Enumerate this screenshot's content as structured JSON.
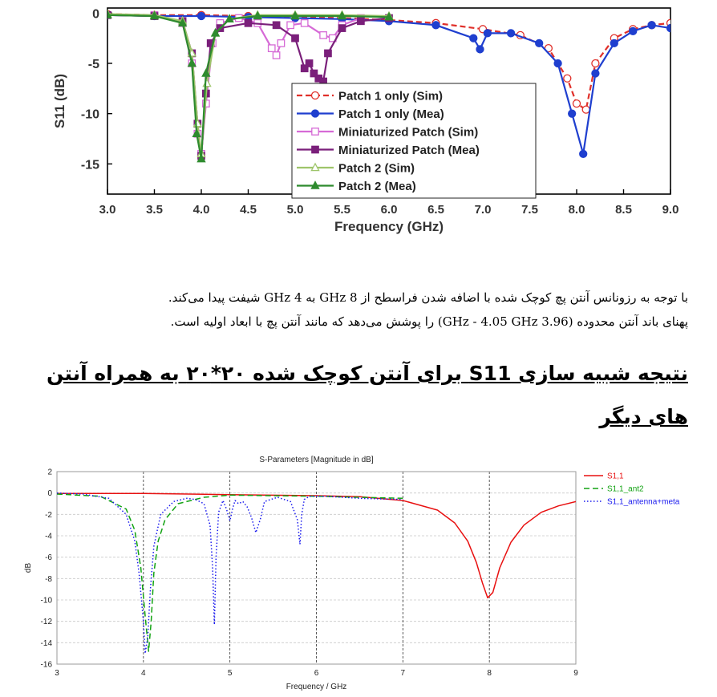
{
  "document": {
    "paragraph_lines": [
      "با توجه به  رزونانس آنتن پچ کوچک شده با اضافه شدن فراسطح از GHz 8 به GHz 4 شیفت پیدا می‌کند.",
      "پهنای باند آنتن محدوده (3.96 GHz - 4.05 GHz) را پوشش می‌دهد که مانند آنتن پچ با ابعاد اولیه است."
    ],
    "heading_lines": [
      "نتیجه شبیه سازی S11 برای آنتن کوچک شده ۲۰*۲۰ به همراه آنتن",
      "های دیگر"
    ]
  },
  "chart_data": [
    {
      "type": "line",
      "title": "",
      "xlabel": "Frequency (GHz)",
      "ylabel": "S11 (dB)",
      "xlim": [
        3.0,
        9.0
      ],
      "ylim": [
        -18,
        0.5
      ],
      "x_ticks": [
        "3.0",
        "3.5",
        "4.0",
        "4.5",
        "5.0",
        "5.5",
        "6.0",
        "6.5",
        "7.0",
        "7.5",
        "8.0",
        "8.5",
        "9.0"
      ],
      "y_ticks": [
        "0",
        "-5",
        "-10",
        "-15"
      ],
      "y_tick_values": [
        0,
        -5,
        -10,
        -15
      ],
      "grid": false,
      "legend_position": "bottom-center",
      "series": [
        {
          "name": "Patch 1 only (Sim)",
          "color": "#e0302a",
          "marker": "open-circle",
          "dash": "dash",
          "x": [
            3.0,
            3.5,
            4.0,
            4.5,
            5.0,
            5.5,
            6.0,
            6.5,
            7.0,
            7.4,
            7.7,
            7.9,
            8.0,
            8.1,
            8.2,
            8.4,
            8.6,
            8.8,
            9.0
          ],
          "y": [
            -0.1,
            -0.2,
            -0.2,
            -0.3,
            -0.4,
            -0.5,
            -0.7,
            -1.0,
            -1.6,
            -2.2,
            -3.5,
            -6.5,
            -9.0,
            -9.6,
            -5.0,
            -2.5,
            -1.6,
            -1.2,
            -1.0
          ]
        },
        {
          "name": "Patch 1 only (Mea)",
          "color": "#1f3fcf",
          "marker": "filled-circle",
          "dash": "solid",
          "x": [
            3.0,
            3.5,
            4.0,
            4.5,
            5.0,
            5.5,
            6.0,
            6.5,
            6.9,
            6.97,
            7.05,
            7.3,
            7.6,
            7.8,
            7.95,
            8.07,
            8.2,
            8.4,
            8.6,
            8.8,
            9.0
          ],
          "y": [
            -0.2,
            -0.3,
            -0.3,
            -0.4,
            -0.5,
            -0.6,
            -0.8,
            -1.2,
            -2.5,
            -3.6,
            -2.0,
            -2.0,
            -3.0,
            -5.0,
            -10.0,
            -14.0,
            -6.0,
            -3.0,
            -1.8,
            -1.2,
            -1.5
          ]
        },
        {
          "name": "Miniaturized Patch (Sim)",
          "color": "#d66ad6",
          "marker": "open-square",
          "dash": "solid",
          "x": [
            3.0,
            3.5,
            3.8,
            3.9,
            3.96,
            4.0,
            4.05,
            4.12,
            4.2,
            4.4,
            4.6,
            4.75,
            4.8,
            4.85,
            4.95,
            5.1,
            5.3,
            5.4,
            5.5,
            5.7
          ],
          "y": [
            -0.2,
            -0.2,
            -1.0,
            -5.0,
            -12.0,
            -14.0,
            -9.0,
            -3.0,
            -1.0,
            -0.5,
            -1.0,
            -3.5,
            -4.2,
            -3.0,
            -1.2,
            -1.0,
            -2.2,
            -2.5,
            -1.2,
            -0.5
          ]
        },
        {
          "name": "Miniaturized Patch (Mea)",
          "color": "#7a1f7a",
          "marker": "filled-square",
          "dash": "solid",
          "x": [
            3.0,
            3.5,
            3.8,
            3.9,
            3.96,
            4.0,
            4.05,
            4.1,
            4.2,
            4.5,
            4.8,
            5.0,
            5.1,
            5.15,
            5.2,
            5.25,
            5.3,
            5.35,
            5.5,
            5.7,
            6.0
          ],
          "y": [
            -0.2,
            -0.3,
            -0.8,
            -4.0,
            -11.0,
            -14.2,
            -8.0,
            -3.0,
            -1.5,
            -1.0,
            -1.2,
            -2.5,
            -5.5,
            -5.0,
            -6.0,
            -6.5,
            -6.8,
            -4.0,
            -1.5,
            -0.8,
            -0.5
          ]
        },
        {
          "name": "Patch 2 (Sim)",
          "color": "#9ec56a",
          "marker": "open-triangle",
          "dash": "solid",
          "x": [
            3.0,
            3.5,
            3.8,
            3.9,
            3.96,
            4.0,
            4.06,
            4.15,
            4.3,
            4.6,
            5.0,
            5.5,
            6.0
          ],
          "y": [
            -0.1,
            -0.2,
            -0.8,
            -4.0,
            -11.0,
            -14.0,
            -7.0,
            -2.0,
            -0.6,
            -0.2,
            -0.2,
            -0.2,
            -0.3
          ]
        },
        {
          "name": "Patch 2 (Mea)",
          "color": "#2e8b2e",
          "marker": "filled-triangle",
          "dash": "solid",
          "x": [
            3.0,
            3.5,
            3.8,
            3.9,
            3.95,
            4.0,
            4.05,
            4.15,
            4.3,
            4.6,
            5.0,
            5.5,
            6.0
          ],
          "y": [
            -0.2,
            -0.3,
            -1.0,
            -5.0,
            -12.0,
            -14.5,
            -6.0,
            -2.0,
            -0.6,
            -0.3,
            -0.3,
            -0.3,
            -0.4
          ]
        }
      ]
    },
    {
      "type": "line",
      "title": "S-Parameters [Magnitude in dB]",
      "xlabel": "Frequency / GHz",
      "ylabel": "dB",
      "xlim": [
        3,
        9
      ],
      "ylim": [
        -16,
        2
      ],
      "x_ticks": [
        "3",
        "4",
        "5",
        "6",
        "7",
        "8",
        "9"
      ],
      "y_ticks": [
        "2",
        "0",
        "-2",
        "-4",
        "-6",
        "-8",
        "-10",
        "-12",
        "-14",
        "-16"
      ],
      "y_tick_values": [
        2,
        0,
        -2,
        -4,
        -6,
        -8,
        -10,
        -12,
        -14,
        -16
      ],
      "grid": true,
      "legend_position": "right",
      "series": [
        {
          "name": "S1,1",
          "color": "#e81010",
          "dash": "solid",
          "x": [
            3.0,
            4.0,
            5.0,
            6.0,
            6.5,
            7.0,
            7.4,
            7.6,
            7.75,
            7.85,
            7.92,
            7.98,
            8.04,
            8.12,
            8.25,
            8.4,
            8.6,
            8.8,
            9.0
          ],
          "y": [
            -0.05,
            -0.05,
            -0.15,
            -0.25,
            -0.35,
            -0.7,
            -1.6,
            -2.8,
            -4.5,
            -6.5,
            -8.4,
            -9.8,
            -9.3,
            -7.0,
            -4.6,
            -3.0,
            -1.8,
            -1.2,
            -0.8
          ]
        },
        {
          "name": "S1,1_ant2",
          "color": "#13a313",
          "dash": "dash",
          "x": [
            3.0,
            3.5,
            3.8,
            3.9,
            3.97,
            4.02,
            4.06,
            4.09,
            4.12,
            4.17,
            4.25,
            4.4,
            4.7,
            5.0,
            6.0,
            7.0
          ],
          "y": [
            -0.1,
            -0.3,
            -1.5,
            -3.5,
            -7.0,
            -11.5,
            -14.8,
            -12.0,
            -7.5,
            -4.5,
            -2.5,
            -1.0,
            -0.4,
            -0.2,
            -0.3,
            -0.5
          ]
        },
        {
          "name": "S1,1_antenna+meta",
          "color": "#1a1aee",
          "dash": "dot",
          "x": [
            3.0,
            3.3,
            3.6,
            3.8,
            3.9,
            3.95,
            4.0,
            4.02,
            4.05,
            4.08,
            4.12,
            4.2,
            4.35,
            4.5,
            4.6,
            4.7,
            4.77,
            4.8,
            4.82,
            4.84,
            4.87,
            4.92,
            4.96,
            5.0,
            5.03,
            5.06,
            5.1,
            5.15,
            5.2,
            5.25,
            5.3,
            5.35,
            5.4,
            5.55,
            5.7,
            5.78,
            5.81,
            5.83,
            5.86,
            5.92,
            6.1,
            6.5,
            7.0
          ],
          "y": [
            0.0,
            -0.1,
            -0.5,
            -2.0,
            -4.5,
            -7.5,
            -12.0,
            -15.0,
            -13.5,
            -9.0,
            -5.0,
            -2.0,
            -0.8,
            -0.5,
            -0.6,
            -1.0,
            -3.0,
            -7.0,
            -12.3,
            -6.0,
            -1.8,
            -0.7,
            -1.5,
            -2.6,
            -1.5,
            -0.7,
            -1.0,
            -0.8,
            -1.3,
            -2.3,
            -3.7,
            -2.5,
            -0.8,
            -0.4,
            -0.8,
            -2.5,
            -4.8,
            -2.0,
            -0.6,
            -0.3,
            -0.3,
            -0.5,
            -0.6
          ]
        }
      ]
    }
  ]
}
